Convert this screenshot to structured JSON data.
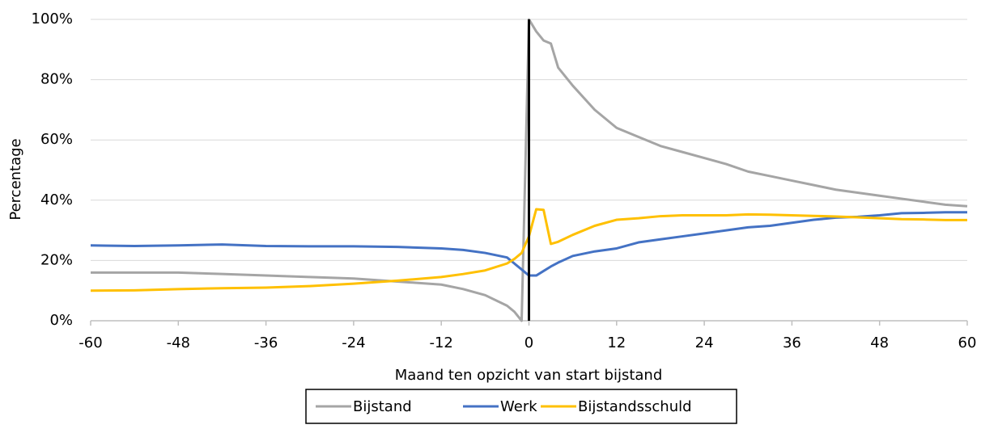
{
  "chart_data": {
    "type": "line",
    "x_label": "Maand ten opzicht van start bijstand",
    "y_label": "Percentage",
    "x": [
      -60,
      -54,
      -48,
      -42,
      -36,
      -30,
      -24,
      -18,
      -12,
      -9,
      -6,
      -3,
      -2,
      -1,
      0,
      1,
      2,
      3,
      4,
      6,
      9,
      12,
      15,
      18,
      21,
      24,
      27,
      30,
      33,
      36,
      39,
      42,
      45,
      48,
      51,
      54,
      57,
      60
    ],
    "series": [
      {
        "name": "Bijstand",
        "color": "#a5a5a5",
        "values": [
          16,
          16,
          16,
          15.5,
          15,
          14.5,
          14,
          13,
          12,
          10.5,
          8.5,
          5,
          3,
          0,
          100,
          96,
          93,
          92,
          84,
          78,
          70,
          64,
          61,
          58,
          56,
          54,
          52,
          49.5,
          48,
          46.5,
          45,
          43.5,
          42.5,
          41.5,
          40.5,
          39.5,
          38.5,
          38
        ]
      },
      {
        "name": "Werk",
        "color": "#4472c4",
        "values": [
          25,
          24.8,
          25,
          25.3,
          24.8,
          24.7,
          24.7,
          24.5,
          24,
          23.5,
          22.5,
          21,
          19,
          17,
          15,
          15,
          16.5,
          18,
          19.3,
          21.5,
          23,
          24,
          26,
          27,
          28,
          29,
          30,
          31,
          31.5,
          32.5,
          33.5,
          34.2,
          34.5,
          35,
          35.7,
          35.8,
          36,
          36
        ]
      },
      {
        "name": "Bijstandsschuld",
        "color": "#ffc000",
        "values": [
          10,
          10.1,
          10.5,
          10.8,
          11,
          11.5,
          12.3,
          13.3,
          14.5,
          15.5,
          16.7,
          19,
          20.5,
          22.5,
          28,
          37,
          36.8,
          25.5,
          26.2,
          28.5,
          31.5,
          33.5,
          34,
          34.7,
          35,
          35,
          35,
          35.3,
          35.2,
          35,
          34.8,
          34.6,
          34.3,
          34,
          33.7,
          33.6,
          33.4,
          33.4
        ]
      }
    ],
    "xlim": [
      -60,
      60
    ],
    "xticks": [
      -60,
      -48,
      -36,
      -24,
      -12,
      0,
      12,
      24,
      36,
      48,
      60
    ],
    "ylim": [
      0,
      100
    ],
    "yticks": [
      {
        "value": 0,
        "label": "0%"
      },
      {
        "value": 20,
        "label": "20%"
      },
      {
        "value": 40,
        "label": "40%"
      },
      {
        "value": 60,
        "label": "60%"
      },
      {
        "value": 80,
        "label": "80%"
      },
      {
        "value": 100,
        "label": "100%"
      }
    ],
    "vline_x": 0,
    "grid": true,
    "legend": "bottom"
  }
}
